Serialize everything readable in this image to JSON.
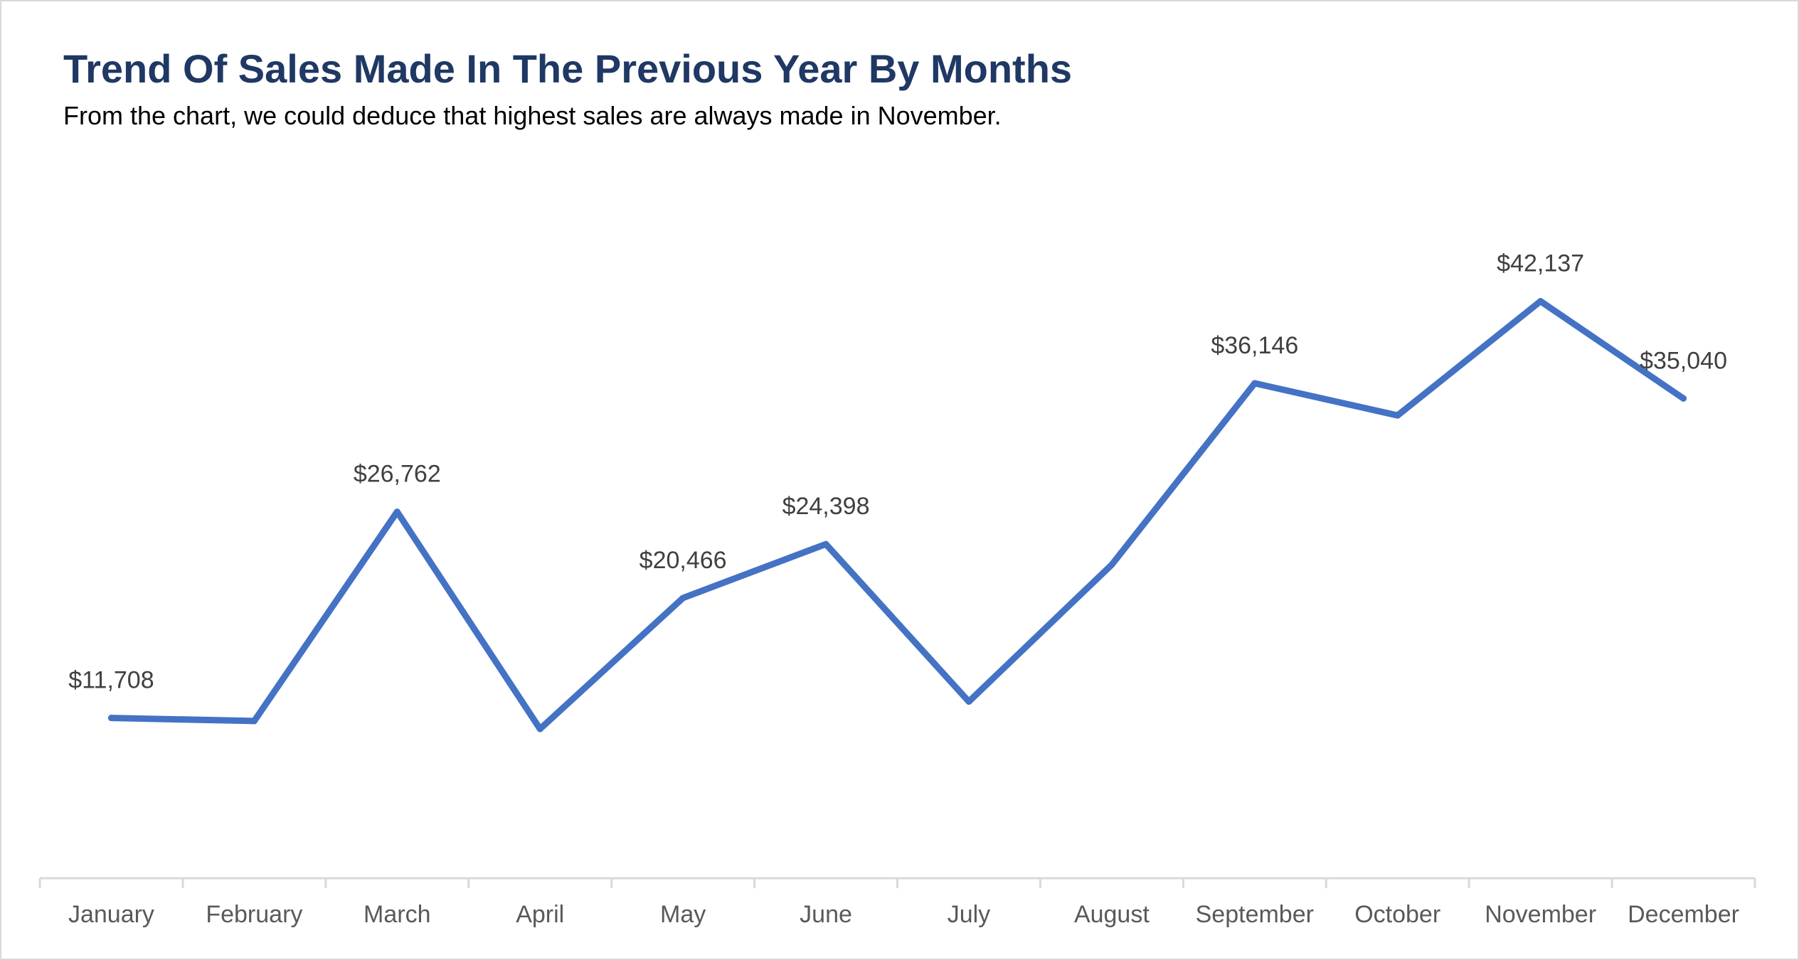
{
  "chart_data": {
    "type": "line",
    "title": "Trend Of Sales Made In The Previous Year By Months",
    "subtitle": "From the chart, we could deduce that highest sales are always made in November.",
    "xlabel": "",
    "ylabel": "",
    "categories": [
      "January",
      "February",
      "March",
      "April",
      "May",
      "June",
      "July",
      "August",
      "September",
      "October",
      "November",
      "December"
    ],
    "series": [
      {
        "values": [
          11708,
          11480,
          26762,
          10900,
          20466,
          24398,
          12900,
          22900,
          36146,
          33800,
          42137,
          35040
        ],
        "data_labels": [
          "$11,708",
          "",
          "$26,762",
          "",
          "$20,466",
          "$24,398",
          "",
          "",
          "$36,146",
          "",
          "$42,137",
          "$35,040"
        ]
      }
    ],
    "ylim": [
      0,
      47000
    ],
    "grid": false,
    "legend": "none",
    "line_color": "#4472c4"
  }
}
